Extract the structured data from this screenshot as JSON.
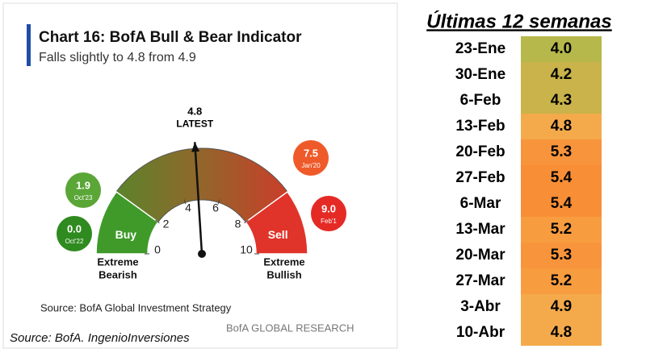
{
  "gauge": {
    "title": "Chart 16: BofA Bull & Bear Indicator",
    "subtitle": "Falls slightly to 4.8 from 4.9",
    "value": 4.8,
    "value_label": "LATEST",
    "range": [
      0,
      10
    ],
    "ticks": [
      0,
      2,
      4,
      6,
      8,
      10
    ],
    "zones": [
      {
        "label": "Buy",
        "from": 0,
        "to": 2
      },
      {
        "label": "Sell",
        "from": 8,
        "to": 10
      }
    ],
    "end_labels": [
      [
        "Extreme",
        "Bearish"
      ],
      [
        "Extreme",
        "Bullish"
      ]
    ],
    "callouts": [
      {
        "value": 1.9,
        "date": "Oct'23"
      },
      {
        "value": 0,
        "label": "0.0",
        "date": "Oct'22"
      },
      {
        "value": 7.5,
        "date": "Jan'20"
      },
      {
        "value": 9,
        "label": "9.0",
        "date": "Feb'1"
      }
    ],
    "source": "Source: BofA Global Investment Strategy",
    "watermark": "BofA GLOBAL RESEARCH"
  },
  "caption": "Source: BofA. IngenioInversiones",
  "table": {
    "title": "Últimas 12 semanas",
    "rows": [
      [
        "23-Ene",
        "4.0"
      ],
      [
        "30-Ene",
        "4.2"
      ],
      [
        "6-Feb",
        "4.3"
      ],
      [
        "13-Feb",
        "4.8"
      ],
      [
        "20-Feb",
        "5.3"
      ],
      [
        "27-Feb",
        "5.4"
      ],
      [
        "6-Mar",
        "5.4"
      ],
      [
        "13-Mar",
        "5.2"
      ],
      [
        "20-Mar",
        "5.3"
      ],
      [
        "27-Mar",
        "5.2"
      ],
      [
        "3-Abr",
        "4.9"
      ],
      [
        "10-Abr",
        "4.8"
      ]
    ]
  }
}
